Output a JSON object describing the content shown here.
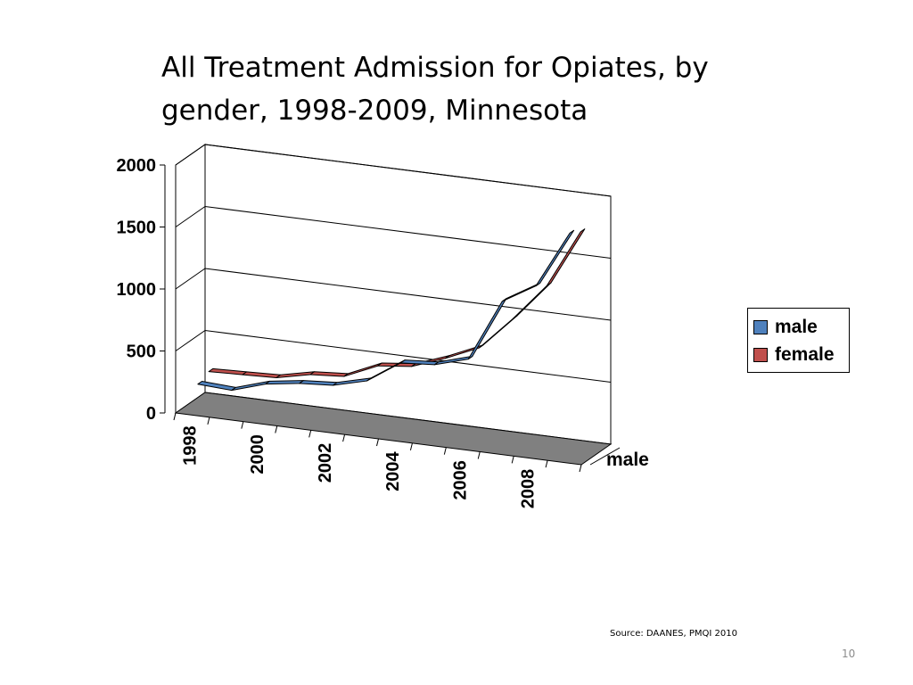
{
  "slide": {
    "title_line1": "All Treatment Admission for Opiates, by",
    "title_line2": "gender, 1998-2009, Minnesota",
    "source": "Source: DAANES, PMQI 2010",
    "page_number": "10"
  },
  "chart_data": {
    "type": "line",
    "style": "3d",
    "title": "All Treatment Admission for Opiates, by gender, 1998-2009, Minnesota",
    "x": [
      1998,
      1999,
      2000,
      2001,
      2002,
      2003,
      2004,
      2005,
      2006,
      2007,
      2008,
      2009
    ],
    "x_tick_labels": [
      "1998",
      "2000",
      "2002",
      "2004",
      "2006",
      "2008"
    ],
    "y_tick_labels": [
      "0",
      "500",
      "1000",
      "1500",
      "2000"
    ],
    "ylim": [
      0,
      2000
    ],
    "depth_label": "male",
    "grid": true,
    "legend_position": "right",
    "series": [
      {
        "name": "male",
        "color": "#4f81bd",
        "values": [
          220,
          205,
          290,
          330,
          350,
          420,
          600,
          620,
          700,
          1200,
          1360,
          1820
        ]
      },
      {
        "name": "female",
        "color": "#c0504d",
        "values": [
          260,
          270,
          280,
          340,
          360,
          480,
          510,
          610,
          730,
          1000,
          1300,
          1770
        ]
      }
    ]
  },
  "legend": {
    "items": [
      {
        "label": "male",
        "color": "#4f81bd"
      },
      {
        "label": "female",
        "color": "#c0504d"
      }
    ]
  }
}
